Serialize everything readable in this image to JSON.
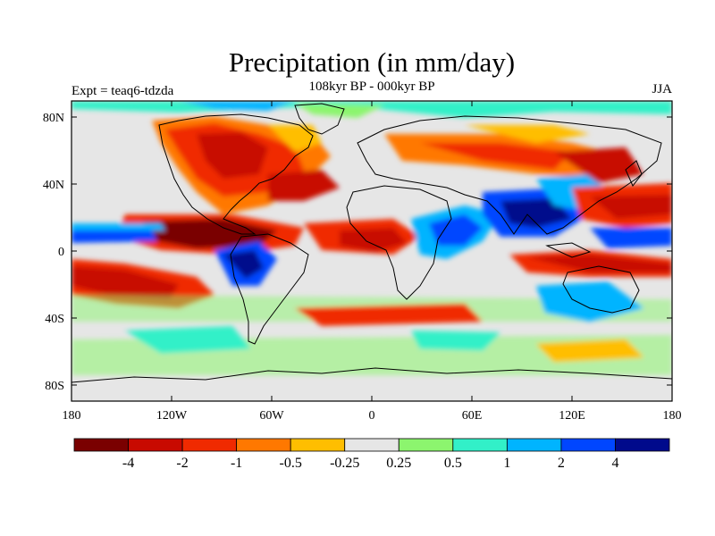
{
  "title": "Precipitation (in mm/day)",
  "subtitle": "108kyr BP - 000kyr BP",
  "left_label": "Expt = teaq6-tdzda",
  "right_label": "JJA",
  "lat_ticks": [
    "80N",
    "40N",
    "0",
    "40S",
    "80S"
  ],
  "lon_ticks": [
    "180",
    "120W",
    "60W",
    "0",
    "60E",
    "120E",
    "180"
  ],
  "colorbar": {
    "colors": [
      "#7a0000",
      "#c80a00",
      "#f02a00",
      "#ff7800",
      "#ffbe00",
      "#e6e6e6",
      "#8cf56e",
      "#32f0c8",
      "#00b4ff",
      "#0046ff",
      "#000a8c"
    ],
    "labels": [
      "-4",
      "-2",
      "-1",
      "-0.5",
      "-0.25",
      "0.25",
      "0.5",
      "1",
      "2",
      "4"
    ]
  },
  "palette": {
    "background": "#e6e6e6",
    "frame": "#000000"
  }
}
